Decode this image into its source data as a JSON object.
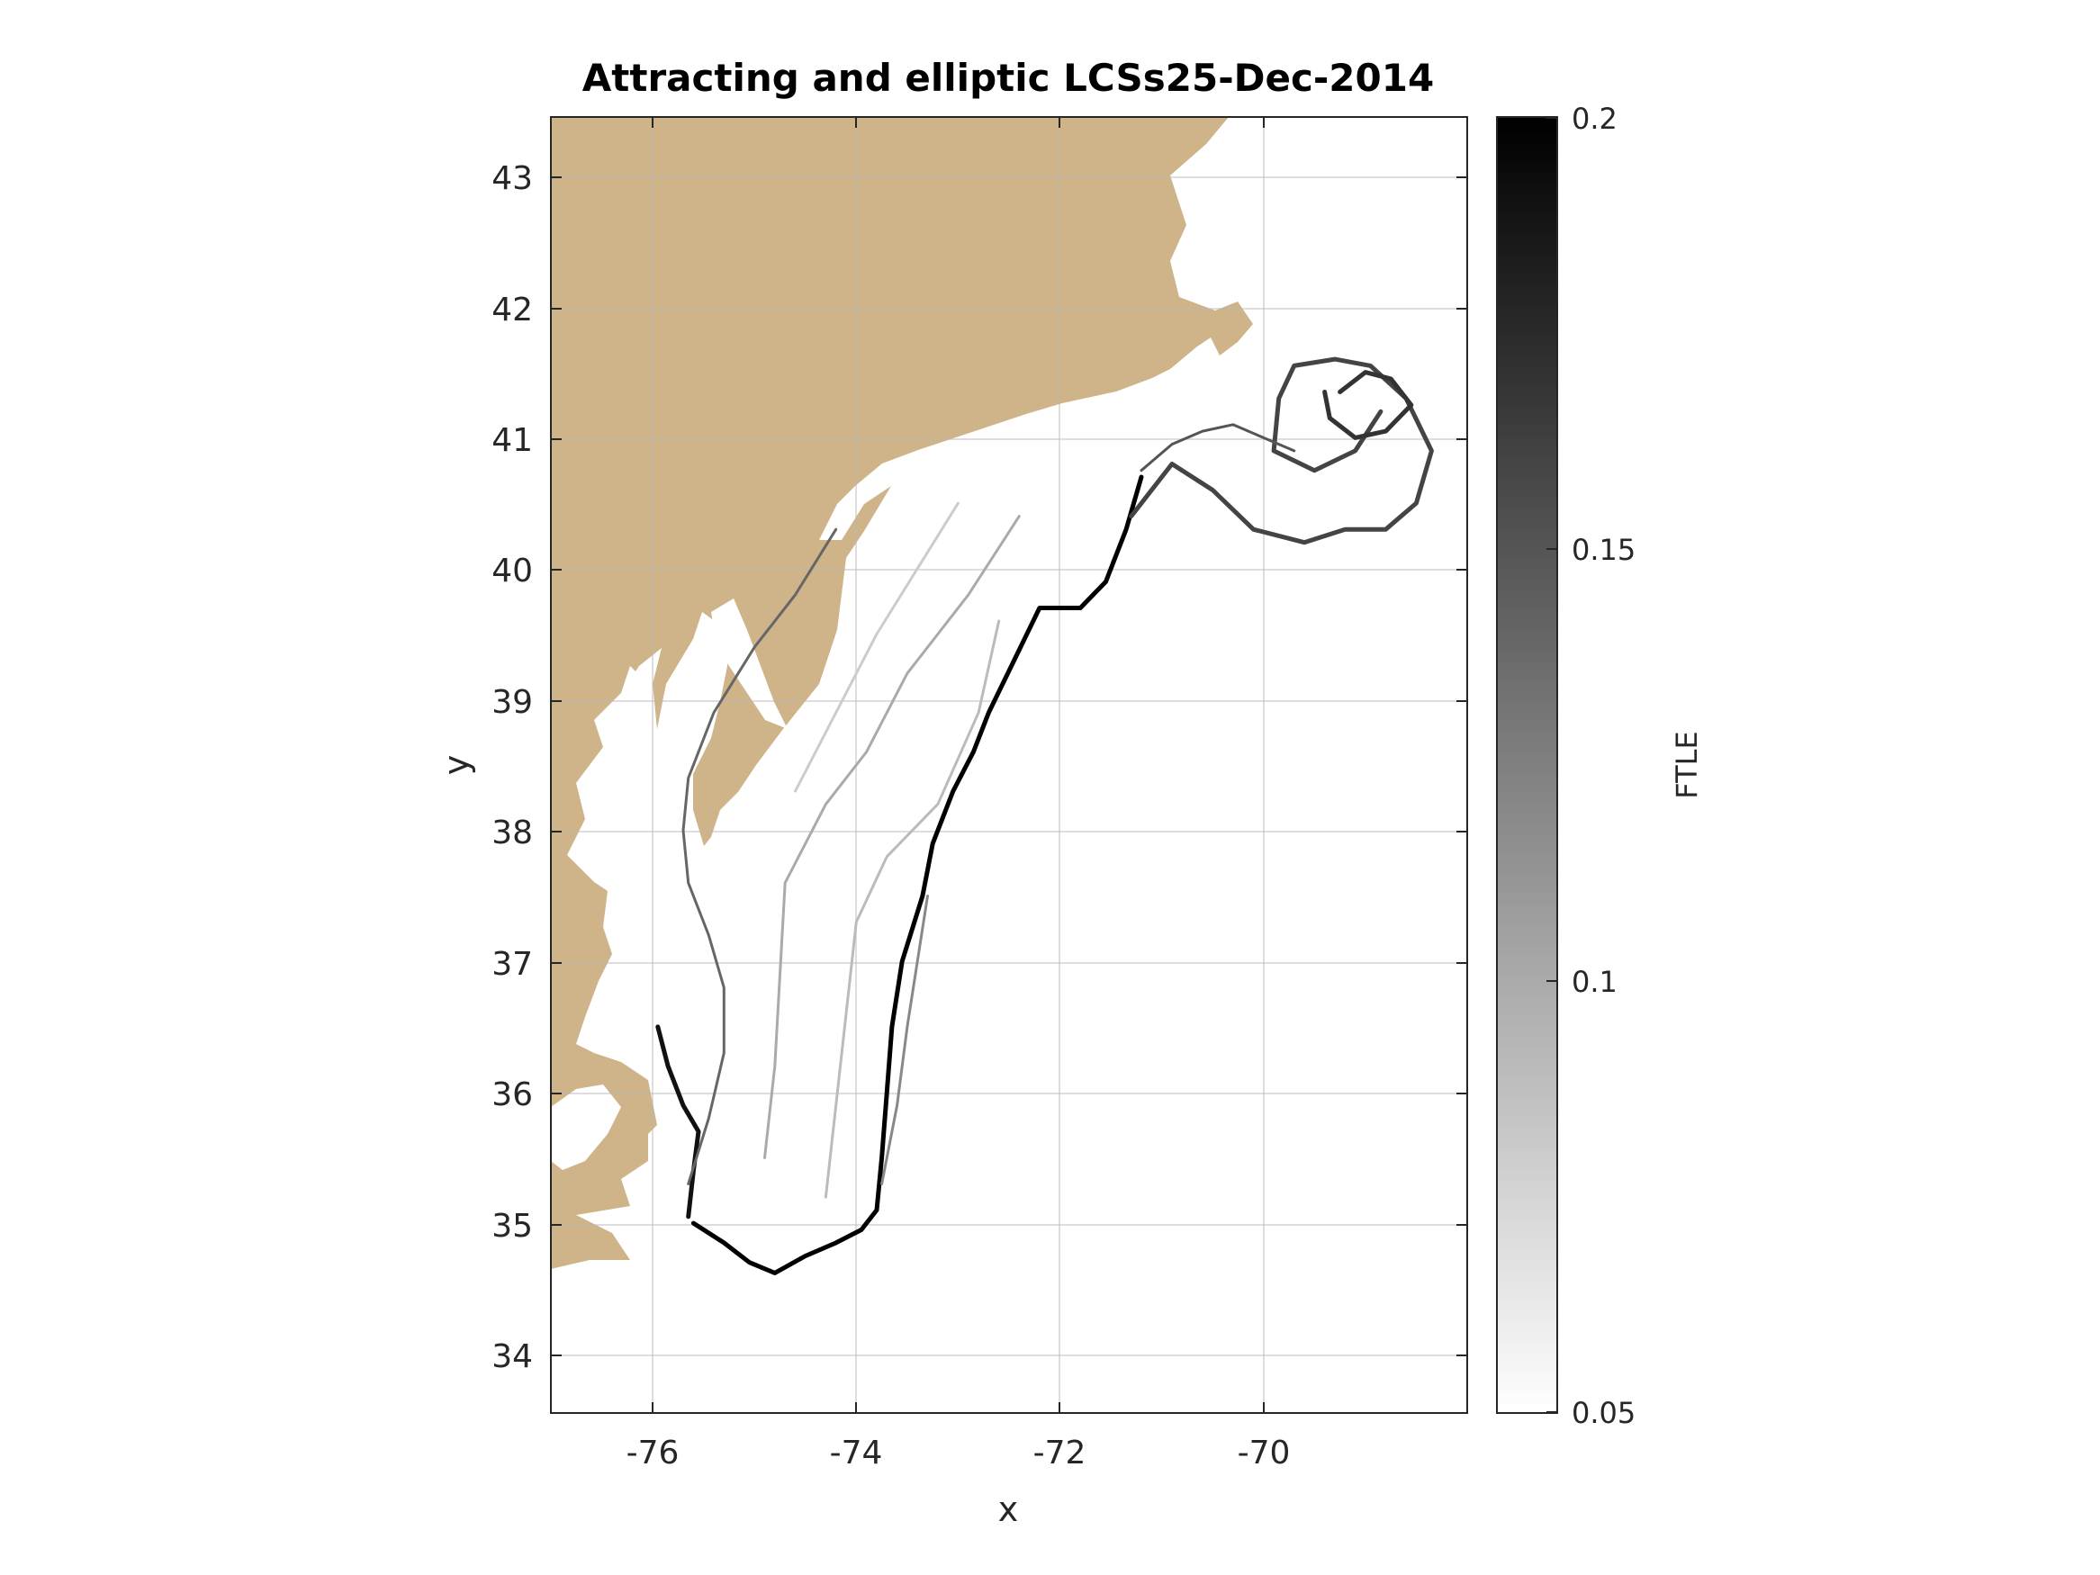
{
  "chart_data": {
    "type": "heatmap",
    "title": "Attracting and elliptic LCSs25-Dec-2014",
    "xlabel": "x",
    "ylabel": "y",
    "xlim": [
      -77.0,
      -68.0
    ],
    "ylim": [
      33.55,
      43.45
    ],
    "x_ticks": [
      "-76",
      "-74",
      "-72",
      "-70"
    ],
    "x_tick_values": [
      -76,
      -74,
      -72,
      -70
    ],
    "y_ticks": [
      "34",
      "35",
      "36",
      "37",
      "38",
      "39",
      "40",
      "41",
      "42",
      "43"
    ],
    "y_tick_values": [
      34,
      35,
      36,
      37,
      38,
      39,
      40,
      41,
      42,
      43
    ],
    "grid": true,
    "colorbar": {
      "label": "FTLE",
      "min": 0.05,
      "max": 0.2,
      "ticks": [
        "0.05",
        "0.1",
        "0.15",
        "0.2"
      ],
      "tick_values": [
        0.05,
        0.1,
        0.15,
        0.2
      ],
      "colormap": "gray-reversed"
    },
    "land_color": "#cfb48a",
    "ridges": [
      {
        "ftle": 0.2,
        "points": [
          [
            -75.6,
            35.0
          ],
          [
            -75.3,
            34.85
          ],
          [
            -75.05,
            34.7
          ],
          [
            -74.8,
            34.62
          ],
          [
            -74.5,
            34.75
          ],
          [
            -74.2,
            34.85
          ],
          [
            -73.95,
            34.95
          ],
          [
            -73.8,
            35.1
          ],
          [
            -73.75,
            35.5
          ],
          [
            -73.7,
            36.0
          ],
          [
            -73.65,
            36.5
          ],
          [
            -73.55,
            37.0
          ],
          [
            -73.35,
            37.5
          ],
          [
            -73.25,
            37.9
          ],
          [
            -73.05,
            38.3
          ],
          [
            -72.85,
            38.6
          ],
          [
            -72.7,
            38.9
          ],
          [
            -72.45,
            39.3
          ],
          [
            -72.2,
            39.7
          ],
          [
            -71.8,
            39.7
          ],
          [
            -71.55,
            39.9
          ],
          [
            -71.35,
            40.3
          ],
          [
            -71.2,
            40.7
          ]
        ]
      },
      {
        "ftle": 0.19,
        "points": [
          [
            -75.65,
            35.05
          ],
          [
            -75.6,
            35.4
          ],
          [
            -75.55,
            35.7
          ],
          [
            -75.7,
            35.9
          ],
          [
            -75.85,
            36.2
          ],
          [
            -75.95,
            36.5
          ]
        ]
      },
      {
        "ftle": 0.14,
        "points": [
          [
            -75.65,
            35.3
          ],
          [
            -75.45,
            35.8
          ],
          [
            -75.3,
            36.3
          ],
          [
            -75.3,
            36.8
          ],
          [
            -75.45,
            37.2
          ],
          [
            -75.65,
            37.6
          ],
          [
            -75.7,
            38.0
          ],
          [
            -75.65,
            38.4
          ],
          [
            -75.4,
            38.9
          ],
          [
            -75.0,
            39.4
          ],
          [
            -74.6,
            39.8
          ],
          [
            -74.2,
            40.3
          ]
        ]
      },
      {
        "ftle": 0.1,
        "points": [
          [
            -74.9,
            35.5
          ],
          [
            -74.8,
            36.2
          ],
          [
            -74.75,
            36.9
          ],
          [
            -74.7,
            37.6
          ],
          [
            -74.3,
            38.2
          ],
          [
            -73.9,
            38.6
          ],
          [
            -73.5,
            39.2
          ],
          [
            -72.9,
            39.8
          ],
          [
            -72.4,
            40.4
          ]
        ]
      },
      {
        "ftle": 0.09,
        "points": [
          [
            -74.3,
            35.2
          ],
          [
            -74.2,
            35.9
          ],
          [
            -74.1,
            36.6
          ],
          [
            -74.0,
            37.3
          ],
          [
            -73.7,
            37.8
          ],
          [
            -73.2,
            38.2
          ],
          [
            -72.8,
            38.9
          ],
          [
            -72.6,
            39.6
          ]
        ]
      },
      {
        "ftle": 0.12,
        "points": [
          [
            -73.75,
            35.3
          ],
          [
            -73.6,
            35.9
          ],
          [
            -73.5,
            36.5
          ],
          [
            -73.4,
            37.0
          ],
          [
            -73.3,
            37.5
          ]
        ]
      },
      {
        "ftle": 0.08,
        "points": [
          [
            -74.6,
            38.3
          ],
          [
            -74.2,
            38.9
          ],
          [
            -73.8,
            39.5
          ],
          [
            -73.4,
            40.0
          ],
          [
            -73.0,
            40.5
          ]
        ]
      },
      {
        "ftle": 0.16,
        "points": [
          [
            -71.3,
            40.4
          ],
          [
            -70.9,
            40.8
          ],
          [
            -70.5,
            40.6
          ],
          [
            -70.1,
            40.3
          ],
          [
            -69.6,
            40.2
          ],
          [
            -69.2,
            40.3
          ],
          [
            -68.8,
            40.3
          ],
          [
            -68.5,
            40.5
          ],
          [
            -68.35,
            40.9
          ],
          [
            -68.6,
            41.3
          ],
          [
            -68.95,
            41.55
          ],
          [
            -69.3,
            41.6
          ],
          [
            -69.7,
            41.55
          ],
          [
            -69.85,
            41.3
          ],
          [
            -69.9,
            40.9
          ],
          [
            -69.5,
            40.75
          ],
          [
            -69.1,
            40.9
          ],
          [
            -68.85,
            41.2
          ]
        ]
      },
      {
        "ftle": 0.17,
        "points": [
          [
            -69.25,
            41.35
          ],
          [
            -69.0,
            41.5
          ],
          [
            -68.75,
            41.45
          ],
          [
            -68.55,
            41.25
          ],
          [
            -68.8,
            41.05
          ],
          [
            -69.1,
            41.0
          ],
          [
            -69.35,
            41.15
          ],
          [
            -69.4,
            41.35
          ]
        ]
      },
      {
        "ftle": 0.15,
        "points": [
          [
            -71.2,
            40.75
          ],
          [
            -70.9,
            40.95
          ],
          [
            -70.6,
            41.05
          ],
          [
            -70.3,
            41.1
          ],
          [
            -70.0,
            41.0
          ],
          [
            -69.7,
            40.9
          ]
        ]
      }
    ]
  }
}
